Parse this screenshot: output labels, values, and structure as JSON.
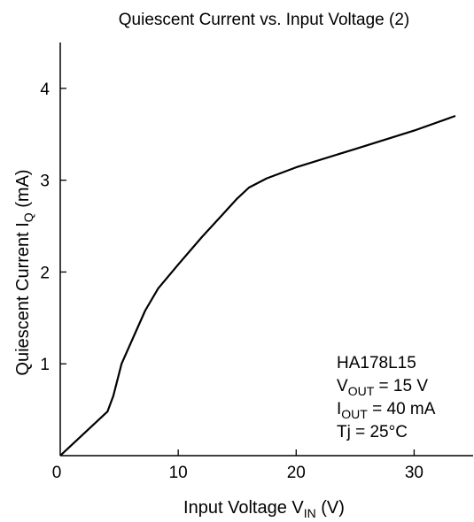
{
  "chart_data": {
    "type": "line",
    "title": "Quiescent Current vs. Input Voltage (2)",
    "xlabel": {
      "main": "Input Voltage  V",
      "sub": "IN",
      "unit": "  (V)"
    },
    "ylabel": {
      "main": "Quiescent Current  I",
      "sub": "Q",
      "unit": "  (mA)"
    },
    "xlim": [
      0,
      35
    ],
    "ylim": [
      0,
      4.5
    ],
    "xticks": [
      0,
      10,
      20,
      30
    ],
    "yticks": [
      1,
      2,
      3,
      4
    ],
    "xtick_labels": [
      "0",
      "10",
      "20",
      "30"
    ],
    "ytick_labels": [
      "1",
      "2",
      "3",
      "4"
    ],
    "grid": false,
    "series": [
      {
        "x": [
          0,
          4.0,
          4.5,
          5.2,
          6.3,
          7.2,
          8.3,
          10.0,
          12.0,
          14.0,
          15.0,
          16.0,
          17.5,
          20.0,
          25.0,
          30.0,
          33.5
        ],
        "y": [
          0,
          0.48,
          0.65,
          1.0,
          1.32,
          1.58,
          1.82,
          2.08,
          2.38,
          2.66,
          2.8,
          2.92,
          3.02,
          3.14,
          3.34,
          3.54,
          3.7
        ]
      }
    ],
    "annotation": [
      {
        "main": "HA178L15",
        "sub": "",
        "rest": ""
      },
      {
        "main": "V",
        "sub": "OUT",
        "rest": " = 15 V"
      },
      {
        "main": "I",
        "sub": "OUT",
        "rest": " = 40 mA"
      },
      {
        "main": "Tj = 25°C",
        "sub": "",
        "rest": ""
      }
    ]
  }
}
